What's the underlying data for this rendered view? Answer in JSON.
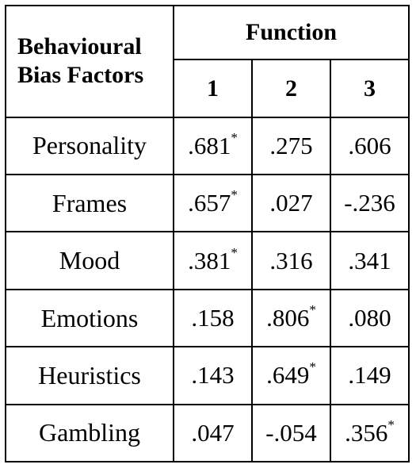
{
  "table": {
    "corner_header": [
      "Behavioural",
      "Bias Factors"
    ],
    "group_header": "Function",
    "function_columns": [
      "1",
      "2",
      "3"
    ],
    "rows": [
      {
        "label": "Personality",
        "cells": [
          {
            "value": ".681",
            "mark": "*"
          },
          {
            "value": ".275",
            "mark": ""
          },
          {
            "value": ".606",
            "mark": ""
          }
        ]
      },
      {
        "label": "Frames",
        "cells": [
          {
            "value": ".657",
            "mark": "*"
          },
          {
            "value": ".027",
            "mark": ""
          },
          {
            "value": "-.236",
            "mark": ""
          }
        ]
      },
      {
        "label": "Mood",
        "cells": [
          {
            "value": ".381",
            "mark": "*"
          },
          {
            "value": ".316",
            "mark": ""
          },
          {
            "value": ".341",
            "mark": ""
          }
        ]
      },
      {
        "label": "Emotions",
        "cells": [
          {
            "value": ".158",
            "mark": ""
          },
          {
            "value": ".806",
            "mark": "*"
          },
          {
            "value": ".080",
            "mark": ""
          }
        ]
      },
      {
        "label": "Heuristics",
        "cells": [
          {
            "value": ".143",
            "mark": ""
          },
          {
            "value": ".649",
            "mark": "*"
          },
          {
            "value": ".149",
            "mark": ""
          }
        ]
      },
      {
        "label": "Gambling",
        "cells": [
          {
            "value": ".047",
            "mark": ""
          },
          {
            "value": "-.054",
            "mark": ""
          },
          {
            "value": ".356",
            "mark": "*"
          }
        ]
      }
    ]
  }
}
